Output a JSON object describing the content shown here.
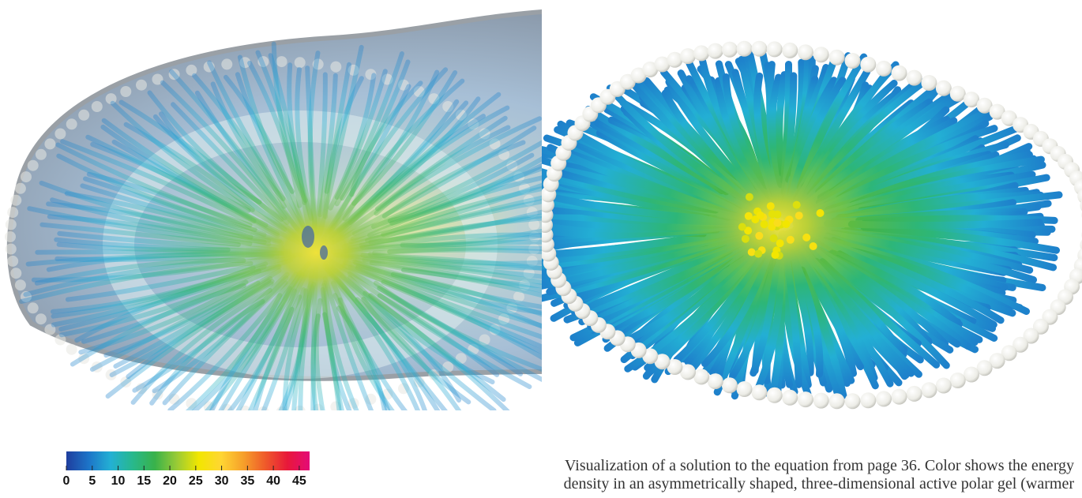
{
  "figure": {
    "colormap": [
      "#1f3e9e",
      "#1d74c8",
      "#23b0d4",
      "#28b88c",
      "#39b24a",
      "#9acb35",
      "#f2e600",
      "#ffd633",
      "#f6a02a",
      "#ef5a2a",
      "#e8183a",
      "#e40b78"
    ],
    "palette": {
      "bead_fill": "#f4f4f1",
      "bead_stroke": "#c8c8c2",
      "shell_fill": "#9fb4c9",
      "core_yellow": "#eadb38",
      "fiber_blue": "#1673c9"
    }
  },
  "colorbar": {
    "ticks": [
      "0",
      "5",
      "10",
      "15",
      "20",
      "25",
      "30",
      "35",
      "40",
      "45"
    ]
  },
  "caption": {
    "line1": "Visualization of a solution to the equation from page 36. Color shows the energy",
    "line2": "density in an asymmetrically shaped, three-dimensional active polar gel (warmer"
  }
}
